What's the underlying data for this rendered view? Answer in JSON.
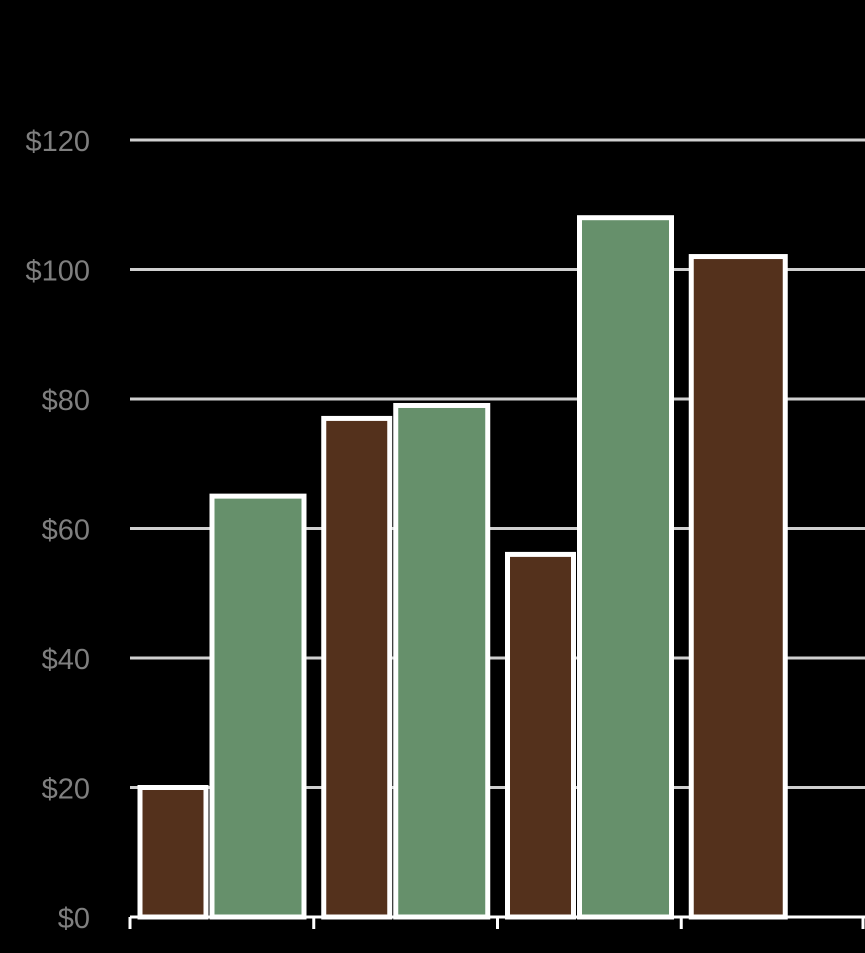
{
  "chart_data": {
    "type": "bar",
    "title": "",
    "xlabel": "",
    "ylabel": "",
    "categories": [
      "",
      "",
      "",
      ""
    ],
    "series": [
      {
        "color": "#54311c",
        "values": [
          20,
          77,
          56,
          102
        ]
      },
      {
        "color": "#66906b",
        "values": [
          65,
          79,
          108,
          null
        ]
      }
    ],
    "ylim": [
      0,
      120
    ],
    "y_ticks": [
      0,
      20,
      40,
      60,
      80,
      100,
      120
    ],
    "y_tick_labels": [
      "$0",
      "$20",
      "$40",
      "$60",
      "$80",
      "$100",
      "$120"
    ],
    "grid": true,
    "legend": "none"
  }
}
